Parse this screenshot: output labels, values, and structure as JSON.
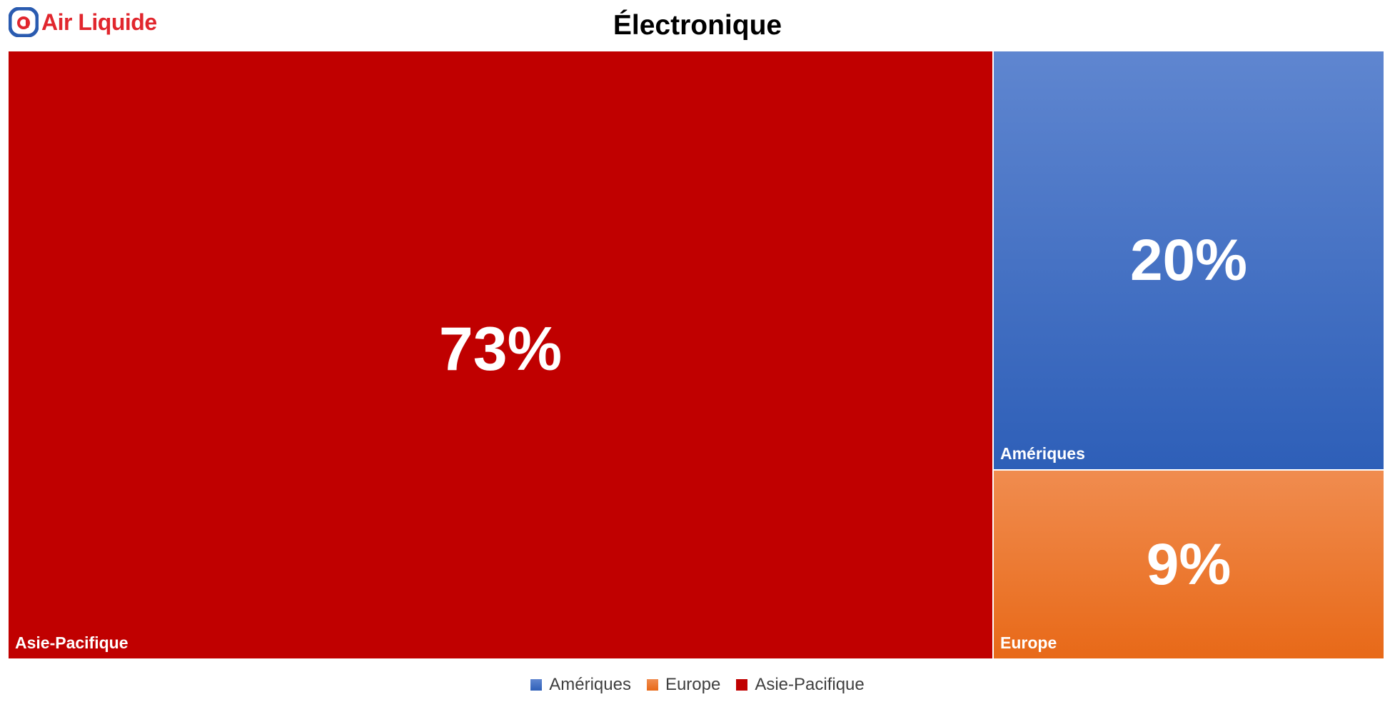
{
  "logo": {
    "text": "Air Liquide",
    "icon": "air-liquide-logo-icon",
    "color": "#e1262d"
  },
  "chart_data": {
    "type": "treemap",
    "title": "Électronique",
    "items": [
      {
        "name": "Asie-Pacifique",
        "value": 73,
        "value_label": "73%",
        "color": "#c00000",
        "color_top": "#c00000",
        "color_bottom": "#c00000"
      },
      {
        "name": "Amériques",
        "value": 20,
        "value_label": "20%",
        "color": "#4472c4",
        "color_top": "#5f86d0",
        "color_bottom": "#2e5fb8"
      },
      {
        "name": "Europe",
        "value": 9,
        "value_label": "9%",
        "color": "#ed7d31",
        "color_top": "#f08c4f",
        "color_bottom": "#e86918"
      }
    ],
    "legend": {
      "position": "bottom",
      "entries": [
        "Amériques",
        "Europe",
        "Asie-Pacifique"
      ]
    }
  }
}
